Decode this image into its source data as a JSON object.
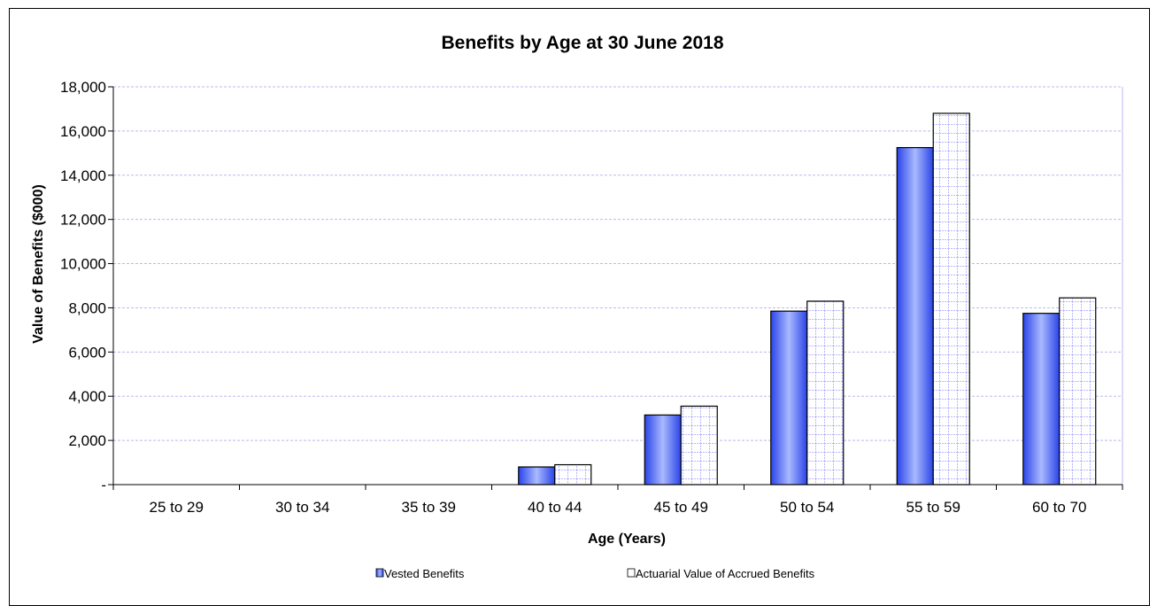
{
  "chart_data": {
    "type": "bar",
    "title": "Benefits by Age at 30 June 2018",
    "xlabel": "Age (Years)",
    "ylabel": "Value of Benefits ($000)",
    "categories": [
      "25 to 29",
      "30 to 34",
      "35 to 39",
      "40 to 44",
      "45 to 49",
      "50 to 54",
      "55 to 59",
      "60 to 70"
    ],
    "ylim": [
      0,
      18000
    ],
    "yticks": [
      0,
      2000,
      4000,
      6000,
      8000,
      10000,
      12000,
      14000,
      16000,
      18000
    ],
    "ytick_labels": [
      "-",
      "2,000",
      "4,000",
      "6,000",
      "8,000",
      "10,000",
      "12,000",
      "14,000",
      "16,000",
      "18,000"
    ],
    "grid": true,
    "legend_position": "bottom",
    "series": [
      {
        "name": "Vested Benefits",
        "values": [
          0,
          0,
          0,
          800,
          3150,
          7850,
          15250,
          7750
        ],
        "color": "#3b5bff"
      },
      {
        "name": "Actuarial Value of Accrued Benefits",
        "values": [
          0,
          0,
          0,
          900,
          3550,
          8300,
          16800,
          8450
        ],
        "color": "#ffffff"
      }
    ]
  }
}
